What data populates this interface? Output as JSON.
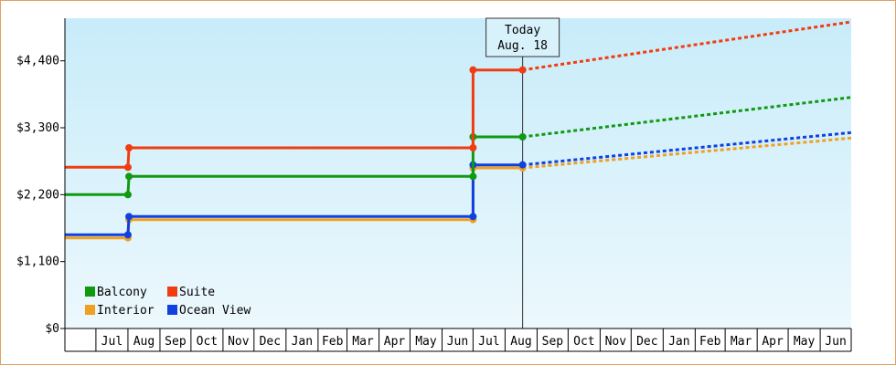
{
  "chart_data": {
    "type": "line",
    "title": "",
    "xlabel": "",
    "ylabel": "",
    "y_ticks": [
      {
        "value": 0,
        "label": "$0"
      },
      {
        "value": 1100,
        "label": "$1,100"
      },
      {
        "value": 2200,
        "label": "$2,200"
      },
      {
        "value": 3300,
        "label": "$3,300"
      },
      {
        "value": 4400,
        "label": "$4,400"
      }
    ],
    "ylim": [
      0,
      5100
    ],
    "xlim": [
      "2014-06-01",
      "2016-07-01"
    ],
    "months": [
      {
        "label": "Jul",
        "start": "2014-07-01",
        "end": "2014-08-01"
      },
      {
        "label": "Aug",
        "start": "2014-08-01",
        "end": "2014-09-01"
      },
      {
        "label": "Sep",
        "start": "2014-09-01",
        "end": "2014-10-01"
      },
      {
        "label": "Oct",
        "start": "2014-10-01",
        "end": "2014-11-01"
      },
      {
        "label": "Nov",
        "start": "2014-11-01",
        "end": "2014-12-01"
      },
      {
        "label": "Dec",
        "start": "2014-12-01",
        "end": "2015-01-01"
      },
      {
        "label": "Jan",
        "start": "2015-01-01",
        "end": "2015-02-01"
      },
      {
        "label": "Feb",
        "start": "2015-02-01",
        "end": "2015-03-01"
      },
      {
        "label": "Mar",
        "start": "2015-03-01",
        "end": "2015-04-01"
      },
      {
        "label": "Apr",
        "start": "2015-04-01",
        "end": "2015-05-01"
      },
      {
        "label": "May",
        "start": "2015-05-01",
        "end": "2015-06-01"
      },
      {
        "label": "Jun",
        "start": "2015-06-01",
        "end": "2015-07-01"
      },
      {
        "label": "Jul",
        "start": "2015-07-01",
        "end": "2015-08-01"
      },
      {
        "label": "Aug",
        "start": "2015-08-01",
        "end": "2015-09-01"
      },
      {
        "label": "Sep",
        "start": "2015-09-01",
        "end": "2015-10-01"
      },
      {
        "label": "Oct",
        "start": "2015-10-01",
        "end": "2015-11-01"
      },
      {
        "label": "Nov",
        "start": "2015-11-01",
        "end": "2015-12-01"
      },
      {
        "label": "Dec",
        "start": "2015-12-01",
        "end": "2016-01-01"
      },
      {
        "label": "Jan",
        "start": "2016-01-01",
        "end": "2016-02-01"
      },
      {
        "label": "Feb",
        "start": "2016-02-01",
        "end": "2016-03-01"
      },
      {
        "label": "Mar",
        "start": "2016-03-01",
        "end": "2016-04-01"
      },
      {
        "label": "Apr",
        "start": "2016-04-01",
        "end": "2016-05-01"
      },
      {
        "label": "May",
        "start": "2016-05-01",
        "end": "2016-06-01"
      },
      {
        "label": "Jun",
        "start": "2016-06-01",
        "end": "2016-07-01"
      }
    ],
    "today": {
      "date": "2015-08-18",
      "line1": "Today",
      "line2": "Aug. 18"
    },
    "legend": {
      "placement": "bottom-left"
    },
    "series": [
      {
        "name": "Balcony",
        "color": "#109a10",
        "points": [
          {
            "date": "2014-06-01",
            "value": 2200
          },
          {
            "date": "2014-08-01",
            "value": 2200
          },
          {
            "date": "2014-08-02",
            "value": 2500
          },
          {
            "date": "2015-07-01",
            "value": 2500
          },
          {
            "date": "2015-07-01",
            "value": 3150
          },
          {
            "date": "2015-08-18",
            "value": 3150
          }
        ],
        "projection": [
          {
            "date": "2015-08-18",
            "value": 3150
          },
          {
            "date": "2016-07-01",
            "value": 3800
          }
        ]
      },
      {
        "name": "Suite",
        "color": "#f03c10",
        "points": [
          {
            "date": "2014-06-01",
            "value": 2650
          },
          {
            "date": "2014-08-01",
            "value": 2650
          },
          {
            "date": "2014-08-02",
            "value": 2970
          },
          {
            "date": "2015-07-01",
            "value": 2970
          },
          {
            "date": "2015-07-01",
            "value": 4250
          },
          {
            "date": "2015-08-18",
            "value": 4250
          }
        ],
        "projection": [
          {
            "date": "2015-08-18",
            "value": 4250
          },
          {
            "date": "2016-07-01",
            "value": 5040
          }
        ]
      },
      {
        "name": "Interior",
        "color": "#f0a020",
        "points": [
          {
            "date": "2014-06-01",
            "value": 1490
          },
          {
            "date": "2014-08-01",
            "value": 1490
          },
          {
            "date": "2014-08-02",
            "value": 1790
          },
          {
            "date": "2015-07-01",
            "value": 1790
          },
          {
            "date": "2015-07-01",
            "value": 2640
          },
          {
            "date": "2015-08-18",
            "value": 2640
          }
        ],
        "projection": [
          {
            "date": "2015-08-18",
            "value": 2640
          },
          {
            "date": "2016-07-01",
            "value": 3130
          }
        ]
      },
      {
        "name": "Ocean View",
        "color": "#1040e0",
        "points": [
          {
            "date": "2014-06-01",
            "value": 1540
          },
          {
            "date": "2014-08-01",
            "value": 1540
          },
          {
            "date": "2014-08-02",
            "value": 1840
          },
          {
            "date": "2015-07-01",
            "value": 1840
          },
          {
            "date": "2015-07-01",
            "value": 2690
          },
          {
            "date": "2015-08-18",
            "value": 2690
          }
        ],
        "projection": [
          {
            "date": "2015-08-18",
            "value": 2690
          },
          {
            "date": "2016-07-01",
            "value": 3220
          }
        ]
      }
    ]
  }
}
